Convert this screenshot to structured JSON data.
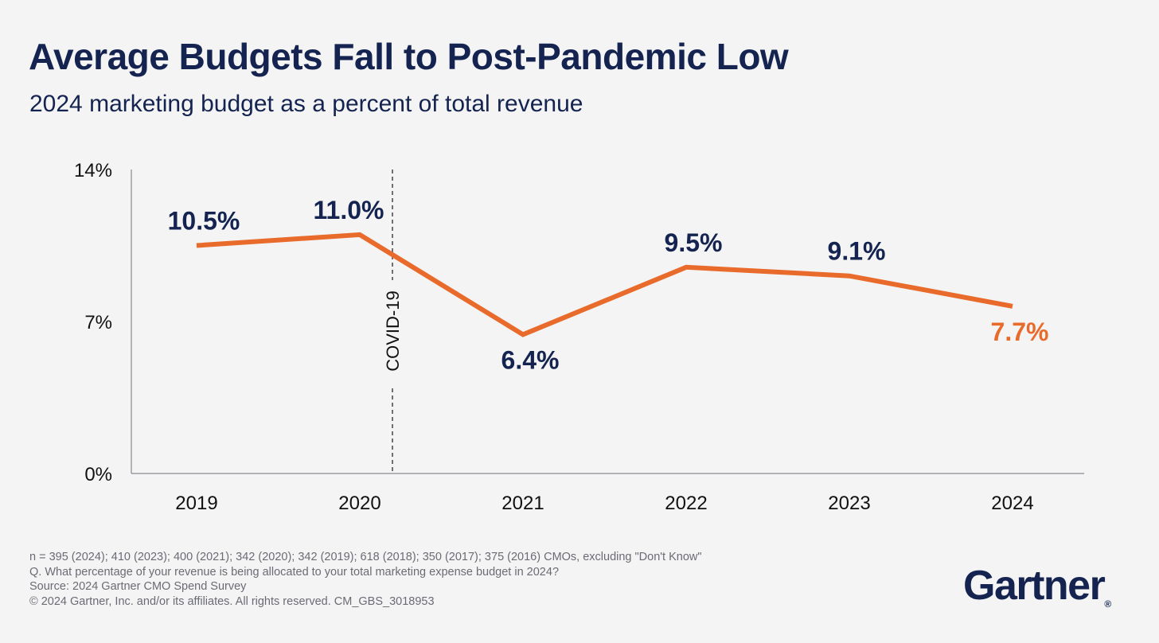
{
  "header": {
    "title": "Average Budgets Fall to Post-Pandemic Low",
    "subtitle": "2024 marketing budget as a percent of total revenue"
  },
  "chart_data": {
    "type": "line",
    "title": "Average Budgets Fall to Post-Pandemic Low",
    "subtitle": "2024 marketing budget as a percent of total revenue",
    "categories": [
      "2019",
      "2020",
      "2021",
      "2022",
      "2023",
      "2024"
    ],
    "series": [
      {
        "values": [
          10.5,
          11.0,
          6.4,
          9.5,
          9.1,
          7.7
        ],
        "data_labels": [
          "10.5%",
          "11.0%",
          "6.4%",
          "9.5%",
          "9.1%",
          "7.7%"
        ],
        "color": "#e96b2c"
      }
    ],
    "ylim": [
      0,
      14
    ],
    "y_ticks": [
      {
        "value": 0,
        "label": "0%"
      },
      {
        "value": 7,
        "label": "7%"
      },
      {
        "value": 14,
        "label": "14%"
      }
    ],
    "xlabel": "",
    "ylabel": "",
    "grid": false,
    "annotations": [
      {
        "label": "COVID-19",
        "style": "dashed vertical line",
        "between": [
          "2020",
          "2021"
        ]
      }
    ],
    "highlight_color": "#e96b2c",
    "label_color": "#14234f"
  },
  "footnotes": [
    "n = 395 (2024); 410 (2023); 400 (2021); 342 (2020); 342 (2019); 618 (2018); 350 (2017); 375 (2016) CMOs, excluding \"Don't Know\"",
    "Q. What percentage of your revenue is being allocated to your total marketing expense budget in 2024?",
    "Source: 2024 Gartner CMO Spend Survey",
    "© 2024 Gartner, Inc. and/or its affiliates. All rights reserved. CM_GBS_3018953"
  ],
  "brand": {
    "name": "Gartner",
    "mark": "®"
  }
}
